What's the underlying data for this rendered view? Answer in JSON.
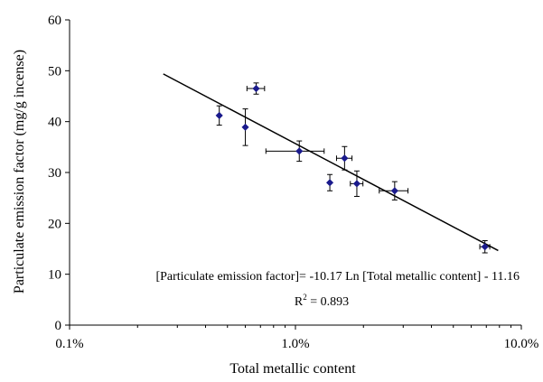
{
  "chart_data": {
    "type": "scatter",
    "xscale": "log",
    "xlim": [
      0.1,
      10.0
    ],
    "ylim": [
      0,
      60
    ],
    "xticks": [
      0.1,
      1.0,
      10.0
    ],
    "xtick_labels": [
      "0.1%",
      "1.0%",
      "10.0%"
    ],
    "yticks": [
      0,
      10,
      20,
      30,
      40,
      50,
      60
    ],
    "ytick_labels": [
      "0",
      "10",
      "20",
      "30",
      "40",
      "50",
      "60"
    ],
    "xlabel": "Total metallic content",
    "ylabel": "Particulate emission factor (mg/g incense)",
    "grid": false,
    "points": [
      {
        "x": 0.46,
        "y": 41.2,
        "yerr": 1.9,
        "xerr": 0.0
      },
      {
        "x": 0.6,
        "y": 38.9,
        "yerr": 3.6,
        "xerr": 0.0
      },
      {
        "x": 0.67,
        "y": 46.5,
        "yerr": 1.1,
        "xerr": 0.06
      },
      {
        "x": 1.04,
        "y": 34.2,
        "yerr": 2.0,
        "xerr": 0.3
      },
      {
        "x": 1.42,
        "y": 28.0,
        "yerr": 1.6,
        "xerr": 0.0
      },
      {
        "x": 1.65,
        "y": 32.8,
        "yerr": 2.3,
        "xerr": 0.13
      },
      {
        "x": 1.87,
        "y": 27.8,
        "yerr": 2.5,
        "xerr": 0.12
      },
      {
        "x": 2.75,
        "y": 26.4,
        "yerr": 1.8,
        "xerr": 0.4
      },
      {
        "x": 6.9,
        "y": 15.4,
        "yerr": 1.2,
        "xerr": 0.35
      }
    ],
    "fit": {
      "slope": -10.17,
      "intercept": -11.16,
      "x_start": 0.26,
      "x_end": 7.9
    },
    "equation_text": "[Particulate emission factor]= -10.17 Ln [Total metallic content] - 11.16",
    "r2_prefix": "R",
    "r2_sup": "2",
    "r2_value": " = 0.893",
    "colors": {
      "points": "#1a1a8c",
      "line": "#000000",
      "axis": "#000000"
    }
  }
}
